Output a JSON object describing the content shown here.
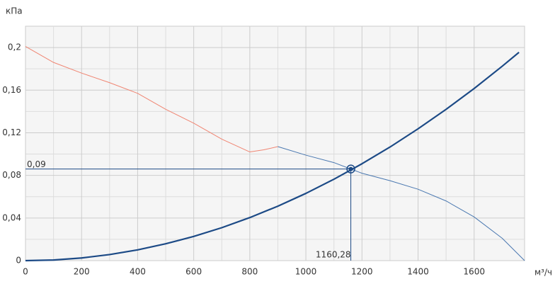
{
  "chart_data": {
    "type": "line",
    "y_label": "кПа",
    "x_label": "м³/ч",
    "xlim": [
      0,
      1780
    ],
    "ylim": [
      0,
      0.22
    ],
    "xticks": [
      0,
      200,
      400,
      600,
      800,
      1000,
      1200,
      1400,
      1600
    ],
    "yticks": [
      {
        "value": 0,
        "label": "0"
      },
      {
        "value": 0.04,
        "label": "0,04"
      },
      {
        "value": 0.08,
        "label": "0,08"
      },
      {
        "value": 0.12,
        "label": "0,12"
      },
      {
        "value": 0.16,
        "label": "0,16"
      },
      {
        "value": 0.2,
        "label": "0,2"
      }
    ],
    "grid": true,
    "series": [
      {
        "color": "#f08572",
        "width": 1,
        "x": [
          0,
          100,
          200,
          300,
          400,
          500,
          600,
          700,
          800,
          850,
          900
        ],
        "values": [
          0.201,
          0.186,
          0.176,
          0.167,
          0.157,
          0.142,
          0.129,
          0.114,
          0.102,
          0.104,
          0.107
        ]
      },
      {
        "color": "#4a78b0",
        "width": 1,
        "x": [
          900,
          1000,
          1100,
          1160,
          1200,
          1300,
          1400,
          1500,
          1600,
          1700,
          1780
        ],
        "values": [
          0.107,
          0.099,
          0.092,
          0.086,
          0.082,
          0.075,
          0.067,
          0.056,
          0.041,
          0.021,
          0
        ]
      },
      {
        "color": "#1c4a86",
        "width": 2.2,
        "x": [
          0,
          100,
          200,
          300,
          400,
          500,
          600,
          700,
          800,
          900,
          1000,
          1100,
          1200,
          1300,
          1400,
          1500,
          1600,
          1700,
          1760
        ],
        "values": [
          0,
          0.0006,
          0.0025,
          0.0057,
          0.0101,
          0.0158,
          0.0227,
          0.0309,
          0.0404,
          0.0511,
          0.0631,
          0.0764,
          0.0909,
          0.1066,
          0.1237,
          0.142,
          0.1615,
          0.1824,
          0.1955
        ]
      }
    ],
    "operating_point": {
      "x": {
        "value": 1160.28,
        "label": "1160,28"
      },
      "y": {
        "value": 0.086,
        "label": "0,09"
      },
      "color": "#1c4a86"
    }
  }
}
